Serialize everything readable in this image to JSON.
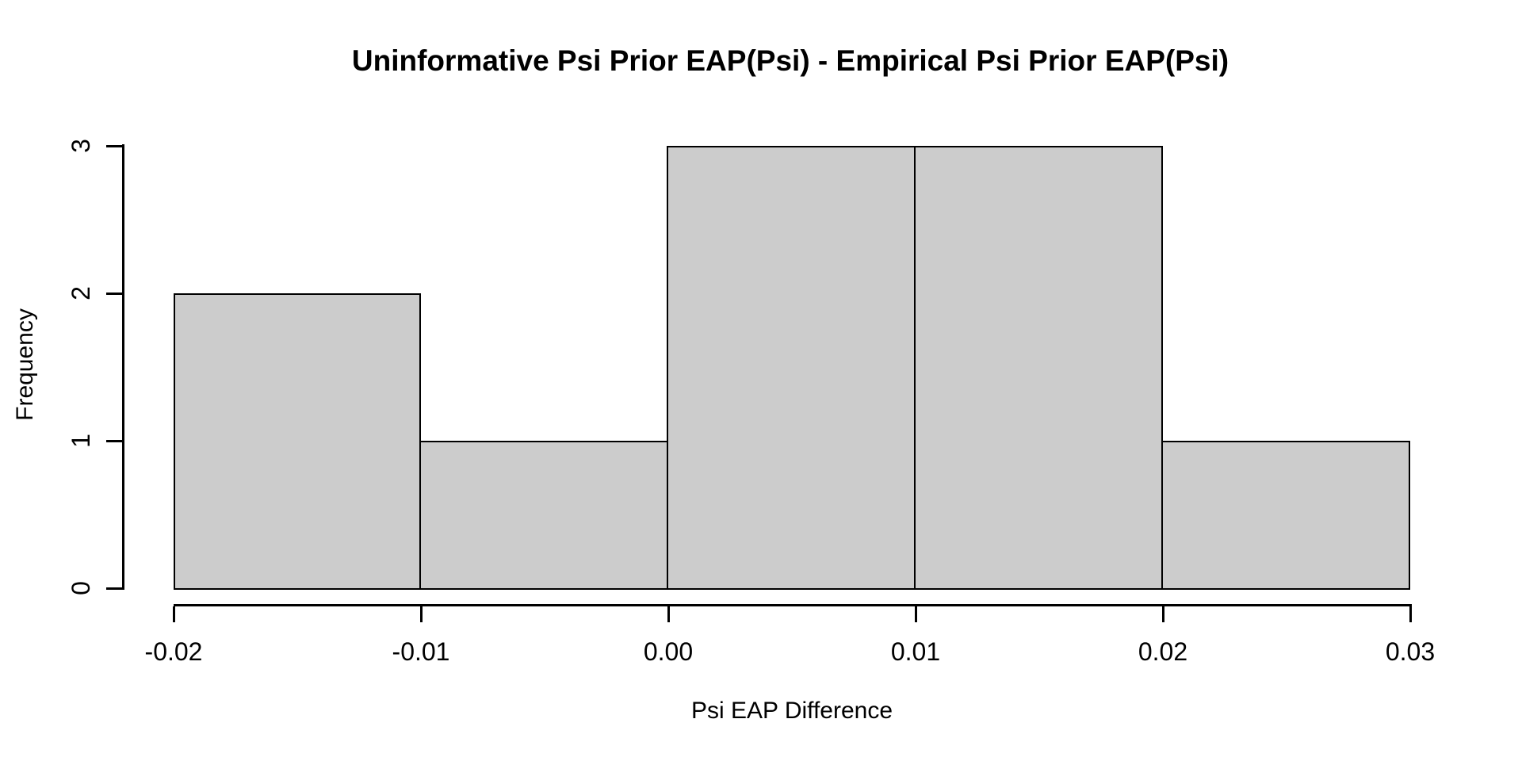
{
  "page": {
    "background_color": "#ffffff",
    "text_color": "#000000"
  },
  "chart_data": {
    "type": "bar",
    "chart_kind": "histogram",
    "title": "Uninformative Psi Prior EAP(Psi) - Empirical Psi Prior EAP(Psi)",
    "xlabel": "Psi EAP Difference",
    "ylabel": "Frequency",
    "bins": [
      {
        "from": -0.02,
        "to": -0.01,
        "count": 2
      },
      {
        "from": -0.01,
        "to": 0.0,
        "count": 1
      },
      {
        "from": 0.0,
        "to": 0.01,
        "count": 3
      },
      {
        "from": 0.01,
        "to": 0.02,
        "count": 3
      },
      {
        "from": 0.02,
        "to": 0.03,
        "count": 1
      }
    ],
    "x_ticks": [
      {
        "value": -0.02,
        "label": "-0.02"
      },
      {
        "value": -0.01,
        "label": "-0.01"
      },
      {
        "value": 0.0,
        "label": "0.00"
      },
      {
        "value": 0.01,
        "label": "0.01"
      },
      {
        "value": 0.02,
        "label": "0.02"
      },
      {
        "value": 0.03,
        "label": "0.03"
      }
    ],
    "y_ticks": [
      {
        "value": 0,
        "label": "0"
      },
      {
        "value": 1,
        "label": "1"
      },
      {
        "value": 2,
        "label": "2"
      },
      {
        "value": 3,
        "label": "3"
      }
    ],
    "xlim": [
      -0.02,
      0.03
    ],
    "ylim": [
      0,
      3
    ],
    "grid": false,
    "legend": false,
    "colors": {
      "bar_fill": "#cccccc",
      "bar_border": "#000000",
      "axis": "#000000"
    }
  }
}
